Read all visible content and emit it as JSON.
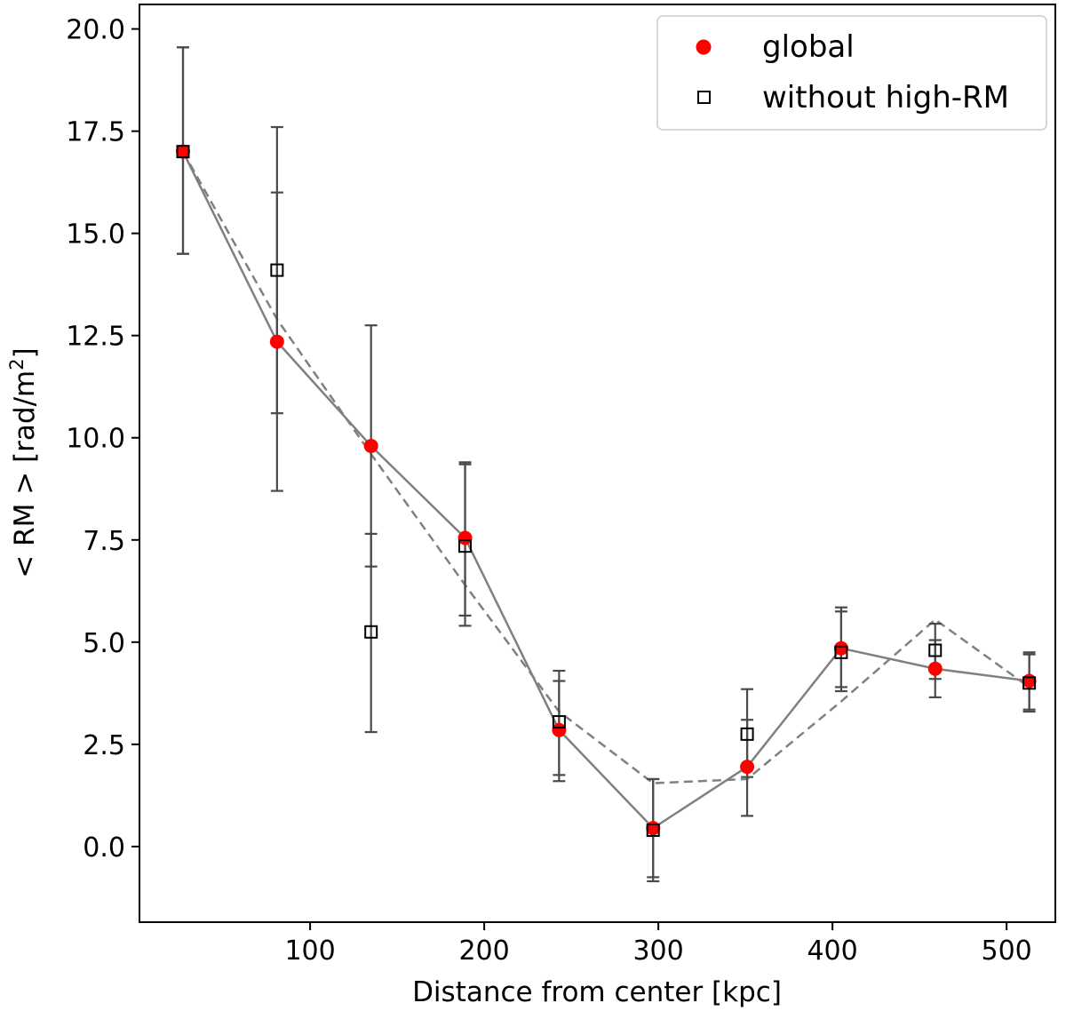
{
  "chart_data": {
    "type": "scatter",
    "xlabel": "Distance from center [kpc]",
    "ylabel_prefix": "< RM >  [rad/m",
    "ylabel_sup": "2",
    "ylabel_suffix": "]",
    "xlim": [
      2,
      528
    ],
    "ylim": [
      -1.85,
      20.6
    ],
    "xticks": [
      100,
      200,
      300,
      400,
      500
    ],
    "yticks": [
      0.0,
      2.5,
      5.0,
      7.5,
      10.0,
      12.5,
      15.0,
      17.5,
      20.0
    ],
    "grid": false,
    "legend_position": "top-right",
    "series": [
      {
        "name": "global",
        "marker": "circle",
        "color": "#ff0000",
        "line": "solid",
        "points": [
          {
            "x": 27,
            "y": 17.0,
            "lo": 14.5,
            "hi": 19.55
          },
          {
            "x": 81,
            "y": 12.35,
            "lo": 8.7,
            "hi": 16.0
          },
          {
            "x": 135,
            "y": 9.8,
            "lo": 6.85,
            "hi": 12.75
          },
          {
            "x": 189,
            "y": 7.55,
            "lo": 5.65,
            "hi": 9.4
          },
          {
            "x": 243,
            "y": 2.85,
            "lo": 1.75,
            "hi": 4.05
          },
          {
            "x": 297,
            "y": 0.45,
            "lo": -0.75,
            "hi": 1.65
          },
          {
            "x": 351,
            "y": 1.95,
            "lo": 0.75,
            "hi": 3.1
          },
          {
            "x": 405,
            "y": 4.85,
            "lo": 3.9,
            "hi": 5.85
          },
          {
            "x": 459,
            "y": 4.35,
            "lo": 3.65,
            "hi": 5.05
          },
          {
            "x": 513,
            "y": 4.05,
            "lo": 3.35,
            "hi": 4.75
          }
        ]
      },
      {
        "name": "without high-RM",
        "marker": "square",
        "color": "#000000",
        "line": "dashed",
        "points": [
          {
            "x": 27,
            "y": 17.0,
            "lo": 14.5,
            "hi": 19.55
          },
          {
            "x": 81,
            "y": 14.1,
            "lo": 10.6,
            "hi": 17.6
          },
          {
            "x": 135,
            "y": 5.25,
            "lo": 2.8,
            "hi": 7.65
          },
          {
            "x": 189,
            "y": 7.35,
            "lo": 5.4,
            "hi": 9.35
          },
          {
            "x": 243,
            "y": 3.05,
            "lo": 1.6,
            "hi": 4.3
          },
          {
            "x": 297,
            "y": 0.4,
            "lo": -0.85,
            "hi": 1.65
          },
          {
            "x": 351,
            "y": 2.75,
            "lo": 1.7,
            "hi": 3.85
          },
          {
            "x": 405,
            "y": 4.75,
            "lo": 3.8,
            "hi": 5.75
          },
          {
            "x": 459,
            "y": 4.8,
            "lo": 4.1,
            "hi": 5.45
          },
          {
            "x": 513,
            "y": 4.0,
            "lo": 3.3,
            "hi": 4.7
          }
        ],
        "dashed_trend": [
          17.0,
          12.9,
          9.6,
          6.4,
          3.3,
          1.55,
          1.65,
          3.55,
          5.55,
          3.9
        ]
      }
    ]
  }
}
